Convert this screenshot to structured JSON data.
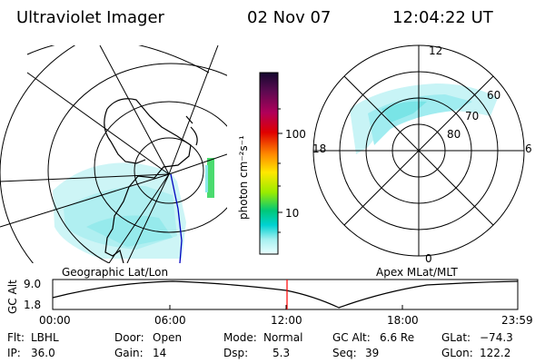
{
  "header": {
    "instrument": "Ultraviolet Imager",
    "date": "02 Nov 07",
    "time": "12:04:22 UT"
  },
  "colorbar": {
    "title": "photon cm⁻²s⁻¹",
    "ticks": [
      "100",
      "10"
    ],
    "colors": [
      "#1a0a40",
      "#7a0050",
      "#cc0000",
      "#ff8a00",
      "#ffe800",
      "#66dd00",
      "#00c86a",
      "#00d2d2",
      "#a0f0f0",
      "#e6ffff"
    ]
  },
  "geo_map": {
    "label": "Geographic Lat/Lon"
  },
  "polar_map": {
    "label": "Apex MLat/MLT",
    "mlt_labels": {
      "top": "12",
      "right": "6",
      "bottom": "0",
      "left": "18"
    },
    "lat_labels": [
      "60",
      "70",
      "80"
    ]
  },
  "timeline": {
    "axis_label": "GC Alt",
    "y_max": "9.0",
    "y_min": "1.8",
    "x_ticks": [
      "00:00",
      "06:00",
      "12:00",
      "18:00",
      "23:59"
    ],
    "current_time_marker": "12:04"
  },
  "info": {
    "flt_label": "Flt:",
    "flt_value": "LBHL",
    "ip_label": "IP:",
    "ip_value": "36.0",
    "door_label": "Door:",
    "door_value": "Open",
    "gain_label": "Gain:",
    "gain_value": "14",
    "mode_label": "Mode:",
    "mode_value": "Normal",
    "dsp_label": "Dsp:",
    "dsp_value": "5.3",
    "gcalt_label": "GC Alt:",
    "gcalt_value": "6.6 Re",
    "seq_label": "Seq:",
    "seq_value": "39",
    "glat_label": "GLat:",
    "glat_value": "−74.3",
    "glon_label": "GLon:",
    "glon_value": "122.2"
  },
  "colors": {
    "aurora": "#a8eef0",
    "aurora_strong": "#5fe0e0",
    "marker": "#ff0000",
    "sat_track": "#0000c0"
  }
}
